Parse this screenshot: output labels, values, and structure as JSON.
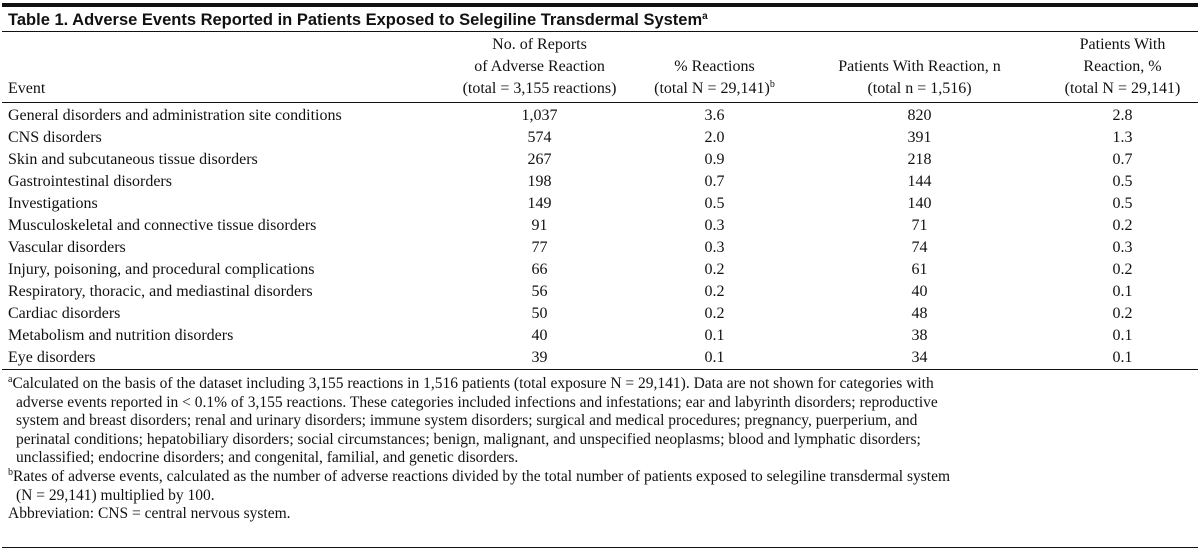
{
  "title": {
    "text": "Table 1. Adverse Events Reported in Patients Exposed to Selegiline Transdermal System",
    "sup": "a"
  },
  "table": {
    "columns": [
      {
        "lines": [
          "Event"
        ]
      },
      {
        "lines": [
          "No. of Reports",
          "of Adverse Reaction",
          "(total = 3,155 reactions)"
        ]
      },
      {
        "lines": [
          "% Reactions",
          "(total N = 29,141)"
        ],
        "sup": "b"
      },
      {
        "lines": [
          "Patients With Reaction, n",
          "(total n = 1,516)"
        ]
      },
      {
        "lines": [
          "Patients With",
          "Reaction, %",
          "(total N = 29,141)"
        ]
      }
    ],
    "rows": [
      [
        "General disorders and administration site conditions",
        "1,037",
        "3.6",
        "820",
        "2.8"
      ],
      [
        "CNS disorders",
        "574",
        "2.0",
        "391",
        "1.3"
      ],
      [
        "Skin and subcutaneous tissue disorders",
        "267",
        "0.9",
        "218",
        "0.7"
      ],
      [
        "Gastrointestinal disorders",
        "198",
        "0.7",
        "144",
        "0.5"
      ],
      [
        "Investigations",
        "149",
        "0.5",
        "140",
        "0.5"
      ],
      [
        "Musculoskeletal and connective tissue disorders",
        "91",
        "0.3",
        "71",
        "0.2"
      ],
      [
        "Vascular disorders",
        "77",
        "0.3",
        "74",
        "0.3"
      ],
      [
        "Injury, poisoning, and procedural complications",
        "66",
        "0.2",
        "61",
        "0.2"
      ],
      [
        "Respiratory, thoracic, and mediastinal disorders",
        "56",
        "0.2",
        "40",
        "0.1"
      ],
      [
        "Cardiac disorders",
        "50",
        "0.2",
        "48",
        "0.2"
      ],
      [
        "Metabolism and nutrition disorders",
        "40",
        "0.1",
        "38",
        "0.1"
      ],
      [
        "Eye disorders",
        "39",
        "0.1",
        "34",
        "0.1"
      ]
    ]
  },
  "footnotes": [
    {
      "marker": "a",
      "lines": [
        "Calculated on the basis of the dataset including 3,155 reactions in 1,516 patients (total exposure N = 29,141). Data are not shown for categories with",
        "adverse events reported in < 0.1% of 3,155 reactions. These categories included infections and infestations; ear and labyrinth disorders; reproductive",
        "system and breast disorders; renal and urinary disorders; immune system disorders; surgical and medical procedures; pregnancy, puerperium, and",
        "perinatal conditions; hepatobiliary disorders; social circumstances; benign, malignant, and unspecified neoplasms; blood and lymphatic disorders;",
        "unclassified; endocrine disorders; and congenital, familial, and genetic disorders."
      ]
    },
    {
      "marker": "b",
      "lines": [
        "Rates of adverse events, calculated as the number of adverse reactions divided by the total number of patients exposed to selegiline transdermal system",
        "(N = 29,141) multiplied by 100."
      ]
    },
    {
      "marker": null,
      "lines": [
        "Abbreviation: CNS = central nervous system."
      ]
    }
  ]
}
